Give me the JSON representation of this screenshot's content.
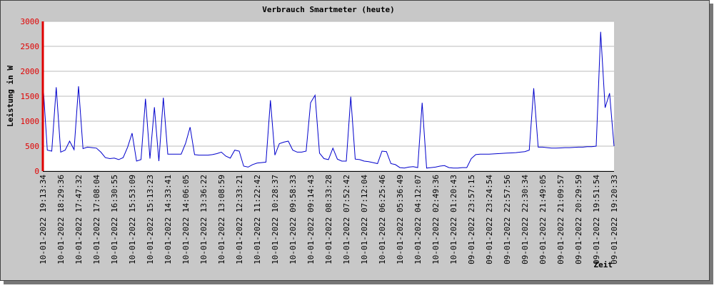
{
  "chart_data": {
    "type": "line",
    "title": "Verbrauch Smartmeter (heute)",
    "y_label": "Leistung in W",
    "x_label": "Zeit",
    "categories": [
      "10-01-2022 19:13:34",
      null,
      null,
      null,
      "10-01-2022 18:29:36",
      null,
      null,
      null,
      "10-01-2022 17:47:32",
      null,
      null,
      null,
      "10-01-2022 17:08:04",
      null,
      null,
      null,
      "10-01-2022 16:30:55",
      null,
      null,
      null,
      "10-01-2022 15:53:09",
      null,
      null,
      null,
      "10-01-2022 15:13:23",
      null,
      null,
      null,
      "10-01-2022 14:33:41",
      null,
      null,
      null,
      "10-01-2022 14:06:05",
      null,
      null,
      null,
      "10-01-2022 13:36:22",
      null,
      null,
      null,
      "10-01-2022 13:08:59",
      null,
      null,
      null,
      "10-01-2022 12:33:21",
      null,
      null,
      null,
      "10-01-2022 11:22:42",
      null,
      null,
      null,
      "10-01-2022 10:28:37",
      null,
      null,
      null,
      "10-01-2022 09:58:33",
      null,
      null,
      null,
      "10-01-2022 09:14:43",
      null,
      null,
      null,
      "10-01-2022 08:33:28",
      null,
      null,
      null,
      "10-01-2022 07:52:42",
      null,
      null,
      null,
      "10-01-2022 07:12:04",
      null,
      null,
      null,
      "10-01-2022 06:25:46",
      null,
      null,
      null,
      "10-01-2022 05:36:49",
      null,
      null,
      null,
      "10-01-2022 04:12:07",
      null,
      null,
      null,
      "10-01-2022 02:49:36",
      null,
      null,
      null,
      "10-01-2022 01:20:43",
      null,
      null,
      null,
      "09-01-2022 23:57:15",
      null,
      null,
      null,
      "09-01-2022 23:24:54",
      null,
      null,
      null,
      "09-01-2022 22:57:56",
      null,
      null,
      null,
      "09-01-2022 22:30:34",
      null,
      null,
      null,
      "09-01-2022 21:49:05",
      null,
      null,
      null,
      "09-01-2022 21:09:57",
      null,
      null,
      null,
      "09-01-2022 20:29:59",
      null,
      null,
      null,
      "09-01-2022 19:51:54",
      null,
      null,
      null,
      "09-01-2022 19:20:33"
    ],
    "series": [
      {
        "color": "#0000cc",
        "values": [
          1800,
          420,
          400,
          1680,
          380,
          420,
          600,
          430,
          1700,
          450,
          480,
          470,
          460,
          380,
          270,
          250,
          260,
          230,
          270,
          480,
          760,
          200,
          230,
          1450,
          250,
          1280,
          200,
          1470,
          340,
          340,
          340,
          340,
          560,
          880,
          330,
          320,
          320,
          320,
          330,
          350,
          380,
          300,
          260,
          420,
          400,
          100,
          80,
          130,
          160,
          170,
          180,
          1420,
          320,
          550,
          580,
          600,
          420,
          380,
          380,
          400,
          1370,
          1520,
          360,
          250,
          230,
          460,
          240,
          200,
          200,
          1490,
          240,
          230,
          200,
          190,
          170,
          150,
          400,
          390,
          150,
          130,
          70,
          60,
          80,
          90,
          70,
          1370,
          60,
          70,
          80,
          100,
          110,
          70,
          60,
          60,
          70,
          70,
          250,
          330,
          340,
          340,
          340,
          345,
          350,
          355,
          360,
          365,
          370,
          380,
          390,
          420,
          1660,
          480,
          480,
          470,
          460,
          460,
          465,
          470,
          470,
          475,
          480,
          480,
          490,
          490,
          500,
          2790,
          1270,
          1560,
          500
        ]
      }
    ],
    "ylim": [
      0,
      3000
    ],
    "yticks": [
      0,
      500,
      1000,
      1500,
      2000,
      2500,
      3000
    ],
    "grid": true
  }
}
